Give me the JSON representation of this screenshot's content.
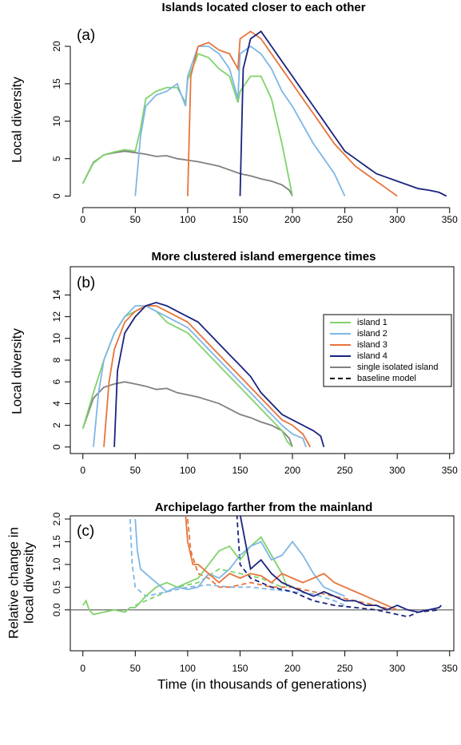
{
  "chart_data": [
    {
      "type": "line",
      "title": "Islands located closer to each other",
      "panel_label": "(a)",
      "ylabel": [
        "Local diversity"
      ],
      "xlim": [
        -12,
        354
      ],
      "xticks": [
        0,
        50,
        100,
        150,
        200,
        250,
        300,
        350
      ],
      "ylim": [
        -1,
        23.2
      ],
      "yticks": [
        0,
        5,
        10,
        15,
        20
      ],
      "box": false,
      "series": [
        {
          "color": "#808080",
          "style": "solid",
          "x": [
            0,
            10,
            20,
            30,
            40,
            50,
            60,
            70,
            80,
            90,
            100,
            110,
            120,
            130,
            140,
            150,
            160,
            170,
            180,
            190,
            197,
            200
          ],
          "values": [
            1.7,
            4.5,
            5.5,
            5.8,
            6,
            5.8,
            5.6,
            5.3,
            5.4,
            5,
            4.8,
            4.6,
            4.3,
            4,
            3.5,
            3,
            2.7,
            2.3,
            2,
            1.5,
            0.8,
            0
          ]
        },
        {
          "color": "#7fd36b",
          "style": "solid",
          "x": [
            0,
            10,
            20,
            30,
            40,
            50,
            55,
            60,
            70,
            80,
            90,
            98,
            100,
            110,
            120,
            130,
            140,
            148,
            150,
            160,
            170,
            180,
            190,
            200
          ],
          "values": [
            1.7,
            4.4,
            5.5,
            5.9,
            6.2,
            6,
            9,
            13,
            14,
            14.5,
            14.5,
            12.5,
            15.5,
            19,
            18.5,
            17,
            16,
            12.5,
            14,
            16,
            16,
            13,
            7,
            0
          ]
        },
        {
          "color": "#7fb6e6",
          "style": "solid",
          "x": [
            50,
            55,
            60,
            70,
            80,
            90,
            98,
            100,
            110,
            120,
            130,
            140,
            148,
            150,
            160,
            170,
            180,
            190,
            200,
            210,
            220,
            230,
            240,
            250
          ],
          "values": [
            0,
            8,
            12,
            13.5,
            14,
            15,
            12,
            16,
            20,
            20,
            19,
            17,
            13,
            19,
            20,
            19,
            17,
            14,
            12,
            9.5,
            7,
            5,
            3,
            0
          ]
        },
        {
          "color": "#e8743b",
          "style": "solid",
          "x": [
            100,
            103,
            110,
            120,
            130,
            140,
            148,
            150,
            160,
            170,
            180,
            190,
            200,
            210,
            220,
            230,
            240,
            250,
            260,
            270,
            280,
            290,
            300
          ],
          "values": [
            0,
            16,
            20,
            20.5,
            19.5,
            19,
            17,
            21,
            22,
            21,
            19,
            17,
            15,
            13,
            11,
            9,
            7,
            5.5,
            4,
            3,
            2,
            1,
            0
          ]
        },
        {
          "color": "#1a237e",
          "style": "solid",
          "x": [
            150,
            153,
            160,
            170,
            180,
            190,
            200,
            210,
            220,
            230,
            240,
            250,
            260,
            270,
            280,
            290,
            300,
            310,
            320,
            330,
            340,
            347
          ],
          "values": [
            0,
            17,
            21,
            22,
            20,
            18,
            16,
            14,
            12,
            10,
            8,
            6,
            5,
            4,
            3,
            2.5,
            2,
            1.5,
            1,
            0.8,
            0.5,
            0
          ]
        }
      ]
    },
    {
      "type": "line",
      "title": "More clustered island emergence times",
      "panel_label": "(b)",
      "ylabel": [
        "Local diversity"
      ],
      "xlim": [
        -12,
        354
      ],
      "xticks": [
        0,
        50,
        100,
        150,
        200,
        250,
        300,
        350
      ],
      "ylim": [
        -0.6,
        16.6
      ],
      "yticks": [
        0,
        2,
        4,
        6,
        8,
        10,
        12,
        14
      ],
      "box": true,
      "legend": [
        {
          "label": "island 1",
          "color": "#7fd36b",
          "style": "solid"
        },
        {
          "label": "island 2",
          "color": "#7fb6e6",
          "style": "solid"
        },
        {
          "label": "island 3",
          "color": "#e8743b",
          "style": "solid"
        },
        {
          "label": "island 4",
          "color": "#1a237e",
          "style": "solid"
        },
        {
          "label": "single isolated island",
          "color": "#808080",
          "style": "solid"
        },
        {
          "label": "baseline model",
          "color": "#000000",
          "style": "dashed"
        }
      ],
      "series": [
        {
          "color": "#808080",
          "style": "solid",
          "x": [
            0,
            10,
            20,
            30,
            40,
            50,
            60,
            70,
            80,
            90,
            100,
            110,
            120,
            130,
            140,
            150,
            160,
            170,
            180,
            190,
            197,
            200
          ],
          "values": [
            1.7,
            4.5,
            5.5,
            5.8,
            6,
            5.8,
            5.6,
            5.3,
            5.4,
            5,
            4.8,
            4.6,
            4.3,
            4,
            3.5,
            3,
            2.7,
            2.3,
            2,
            1.5,
            0.8,
            0
          ]
        },
        {
          "color": "#7fd36b",
          "style": "solid",
          "x": [
            0,
            10,
            20,
            30,
            40,
            50,
            60,
            70,
            80,
            90,
            100,
            110,
            120,
            130,
            140,
            150,
            160,
            170,
            180,
            190,
            195,
            200
          ],
          "values": [
            1.7,
            5,
            8,
            10.5,
            12,
            12.5,
            13,
            12.5,
            11.5,
            11,
            10.5,
            9.5,
            8.5,
            7.5,
            6.5,
            5.5,
            4.5,
            3.5,
            2.5,
            1.5,
            0.5,
            0
          ]
        },
        {
          "color": "#7fb6e6",
          "style": "solid",
          "x": [
            10,
            15,
            20,
            30,
            40,
            50,
            60,
            70,
            80,
            90,
            100,
            110,
            120,
            130,
            140,
            150,
            160,
            170,
            180,
            190,
            200,
            210,
            213
          ],
          "values": [
            0,
            5,
            8,
            10.5,
            12,
            13,
            13,
            12.5,
            12,
            11.5,
            11,
            10,
            9,
            8,
            7,
            6,
            5,
            4,
            3,
            2,
            1.2,
            0.8,
            0
          ]
        },
        {
          "color": "#e8743b",
          "style": "solid",
          "x": [
            20,
            25,
            30,
            40,
            50,
            60,
            70,
            80,
            90,
            100,
            110,
            120,
            130,
            140,
            150,
            160,
            170,
            180,
            190,
            200,
            210,
            217
          ],
          "values": [
            0,
            6,
            9,
            11.5,
            12.5,
            13,
            13,
            12.5,
            12,
            11.5,
            10.5,
            9.5,
            8.5,
            7.5,
            6.5,
            5.5,
            4.5,
            3.5,
            2.5,
            2,
            1.2,
            0
          ]
        },
        {
          "color": "#1a237e",
          "style": "solid",
          "x": [
            30,
            33,
            40,
            50,
            60,
            70,
            80,
            90,
            100,
            110,
            120,
            130,
            140,
            150,
            160,
            170,
            180,
            190,
            200,
            210,
            220,
            227,
            230
          ],
          "values": [
            0,
            7,
            10.5,
            12,
            13,
            13.3,
            13,
            12.5,
            12,
            11.5,
            10.5,
            9.5,
            8.5,
            7.5,
            6.5,
            5,
            4,
            3,
            2.5,
            2,
            1.5,
            1,
            0
          ]
        }
      ]
    },
    {
      "type": "line",
      "title": "Archipelago farther from the mainland",
      "panel_label": "(c)",
      "ylabel": [
        "Relative change in",
        "local diversity"
      ],
      "xlabel": "Time (in thousands of generations)",
      "xlim": [
        -12,
        354
      ],
      "xticks": [
        0,
        50,
        100,
        150,
        200,
        250,
        300,
        350
      ],
      "ylim": [
        -0.9,
        2.07
      ],
      "yticks": [
        {
          "value": 0,
          "label": "0.0"
        },
        {
          "value": 0.5,
          "label": "0.5"
        },
        {
          "value": 1,
          "label": "1.0"
        },
        {
          "value": 1.5,
          "label": "1.5"
        },
        {
          "value": 2,
          "label": "2.0"
        }
      ],
      "box": true,
      "hline": 0,
      "series": [
        {
          "color": "#7fd36b",
          "style": "dashed",
          "x": [
            50,
            70,
            90,
            110,
            130,
            150,
            170,
            190
          ],
          "values": [
            0.1,
            0.3,
            0.5,
            0.6,
            0.9,
            0.8,
            0.7,
            0.5
          ]
        },
        {
          "color": "#7fb6e6",
          "style": "dashed",
          "x": [
            45,
            47,
            50,
            60,
            70,
            80,
            90,
            100,
            120,
            140,
            160,
            180,
            200,
            220,
            240,
            250
          ],
          "values": [
            2,
            1,
            0.5,
            0.3,
            0.35,
            0.4,
            0.45,
            0.5,
            0.55,
            0.5,
            0.5,
            0.45,
            0.4,
            0.35,
            0.2,
            0.1
          ]
        },
        {
          "color": "#e8743b",
          "style": "dashed",
          "x": [
            100,
            103,
            110,
            120,
            130,
            140,
            160,
            180,
            200,
            220,
            240,
            260,
            280,
            295
          ],
          "values": [
            2,
            1.3,
            0.8,
            0.7,
            0.5,
            0.5,
            0.6,
            0.5,
            0.5,
            0.4,
            0.3,
            0.2,
            0.1,
            0
          ]
        },
        {
          "color": "#1a237e",
          "style": "dashed",
          "x": [
            147,
            150,
            160,
            170,
            180,
            200,
            220,
            240,
            260,
            280,
            300,
            310,
            320,
            340
          ],
          "values": [
            2.1,
            1,
            0.7,
            0.6,
            0.5,
            0.4,
            0.2,
            0.1,
            0.05,
            0,
            -0.1,
            -0.15,
            -0.05,
            0
          ]
        },
        {
          "color": "#7fd36b",
          "style": "solid",
          "x": [
            0,
            3,
            6,
            10,
            20,
            30,
            40,
            45,
            50,
            60,
            70,
            80,
            90,
            100,
            110,
            120,
            130,
            140,
            150,
            160,
            170,
            180,
            190,
            195
          ],
          "values": [
            0.1,
            0.2,
            0,
            -0.1,
            -0.05,
            0,
            -0.05,
            0.05,
            0.05,
            0.3,
            0.5,
            0.6,
            0.5,
            0.6,
            0.7,
            1,
            1.3,
            1.4,
            1.1,
            1.4,
            1.6,
            1.2,
            0.8,
            0.5
          ]
        },
        {
          "color": "#7fb6e6",
          "style": "solid",
          "x": [
            50,
            52,
            55,
            60,
            70,
            80,
            90,
            100,
            110,
            120,
            130,
            140,
            150,
            160,
            170,
            180,
            190,
            200,
            210,
            220,
            230,
            240,
            250
          ],
          "values": [
            2,
            1.3,
            0.9,
            0.8,
            0.6,
            0.4,
            0.5,
            0.45,
            0.5,
            0.8,
            0.7,
            0.9,
            1.2,
            1.4,
            1.5,
            1.1,
            1.2,
            1.5,
            1.2,
            0.8,
            0.5,
            0.4,
            0.3
          ]
        },
        {
          "color": "#e8743b",
          "style": "solid",
          "x": [
            98,
            100,
            105,
            110,
            120,
            130,
            140,
            150,
            160,
            170,
            180,
            190,
            200,
            210,
            220,
            230,
            240,
            250,
            260,
            270,
            280,
            290,
            300
          ],
          "values": [
            2.1,
            1.5,
            1,
            1,
            0.8,
            0.6,
            0.8,
            0.7,
            0.8,
            0.75,
            0.6,
            0.8,
            0.7,
            0.6,
            0.7,
            0.8,
            0.6,
            0.5,
            0.4,
            0.3,
            0.2,
            0.1,
            0
          ]
        },
        {
          "color": "#1a237e",
          "style": "solid",
          "x": [
            150,
            155,
            160,
            170,
            180,
            190,
            200,
            210,
            220,
            230,
            240,
            250,
            260,
            270,
            280,
            290,
            300,
            310,
            320,
            330,
            340,
            342
          ],
          "values": [
            2.1,
            1.5,
            0.9,
            1.1,
            0.8,
            0.6,
            0.5,
            0.4,
            0.3,
            0.4,
            0.3,
            0.2,
            0.2,
            0.1,
            0.1,
            0,
            0.1,
            0,
            -0.05,
            0,
            0.05,
            0.1
          ]
        }
      ]
    }
  ]
}
